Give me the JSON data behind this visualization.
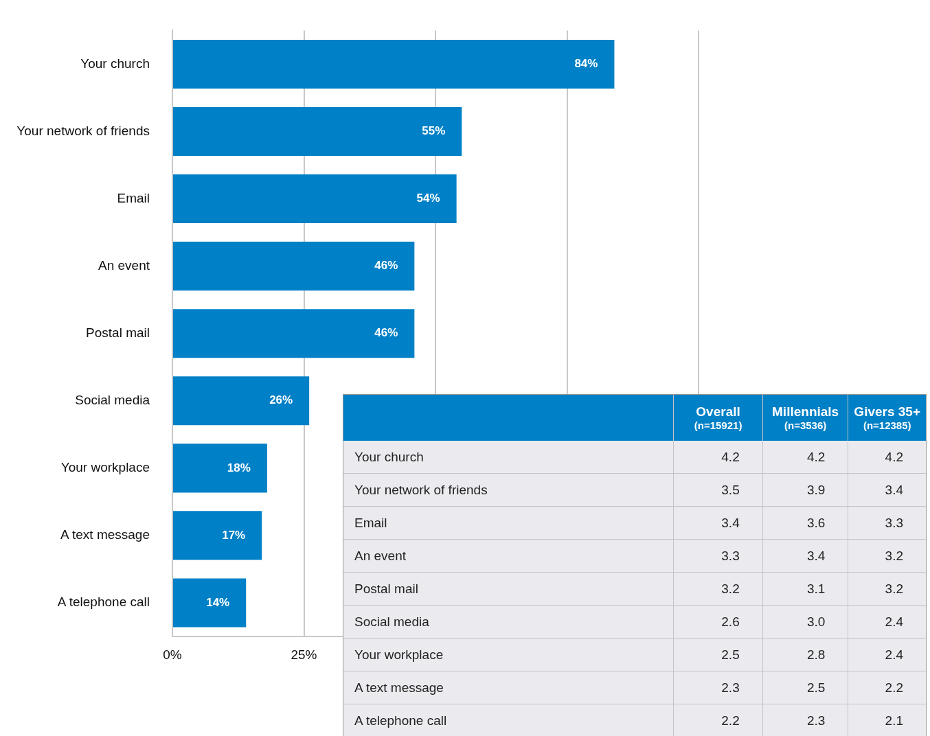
{
  "chart_data": [
    {
      "type": "bar",
      "orientation": "horizontal",
      "categories": [
        "Your church",
        "Your network of friends",
        "Email",
        "An event",
        "Postal mail",
        "Social media",
        "Your workplace",
        "A text message",
        "A telephone call"
      ],
      "values": [
        84,
        55,
        54,
        46,
        46,
        26,
        18,
        17,
        14
      ],
      "value_labels": [
        "84%",
        "55%",
        "54%",
        "46%",
        "46%",
        "26%",
        "18%",
        "17%",
        "14%"
      ],
      "color": "#0080c6",
      "xlim": [
        0,
        100
      ],
      "xticks": [
        {
          "value": 0,
          "label": "0%"
        },
        {
          "value": 25,
          "label": "25%"
        },
        {
          "value": 50,
          "label": null
        },
        {
          "value": 75,
          "label": null
        },
        {
          "value": 100,
          "label": null
        }
      ],
      "grid": "x",
      "legend": false
    },
    {
      "type": "other",
      "categories": [
        "Your church",
        "Your network of friends",
        "Email",
        "An event",
        "Postal mail",
        "Social media",
        "Your workplace",
        "A text message",
        "A telephone call"
      ],
      "data_labels": true,
      "annotations": [
        "(n=15921)",
        "(n=3536)",
        "(n=12385)"
      ],
      "series": [
        {
          "name": "Overall",
          "values": [
            4.2,
            3.5,
            3.4,
            3.3,
            3.2,
            2.6,
            2.5,
            2.3,
            2.2
          ]
        },
        {
          "name": "Millennials",
          "values": [
            4.2,
            3.9,
            3.6,
            3.4,
            3.1,
            3.0,
            2.8,
            2.5,
            2.3
          ],
          "value_labels": [
            "4.2",
            "3.9",
            "3.6",
            "3.4",
            "3.1",
            "3.0",
            "2.8",
            "2.5",
            "2.3"
          ]
        },
        {
          "name": "Givers 35+",
          "values": [
            4.2,
            3.4,
            3.3,
            3.2,
            3.2,
            2.4,
            2.4,
            2.2,
            2.1
          ]
        }
      ]
    }
  ]
}
